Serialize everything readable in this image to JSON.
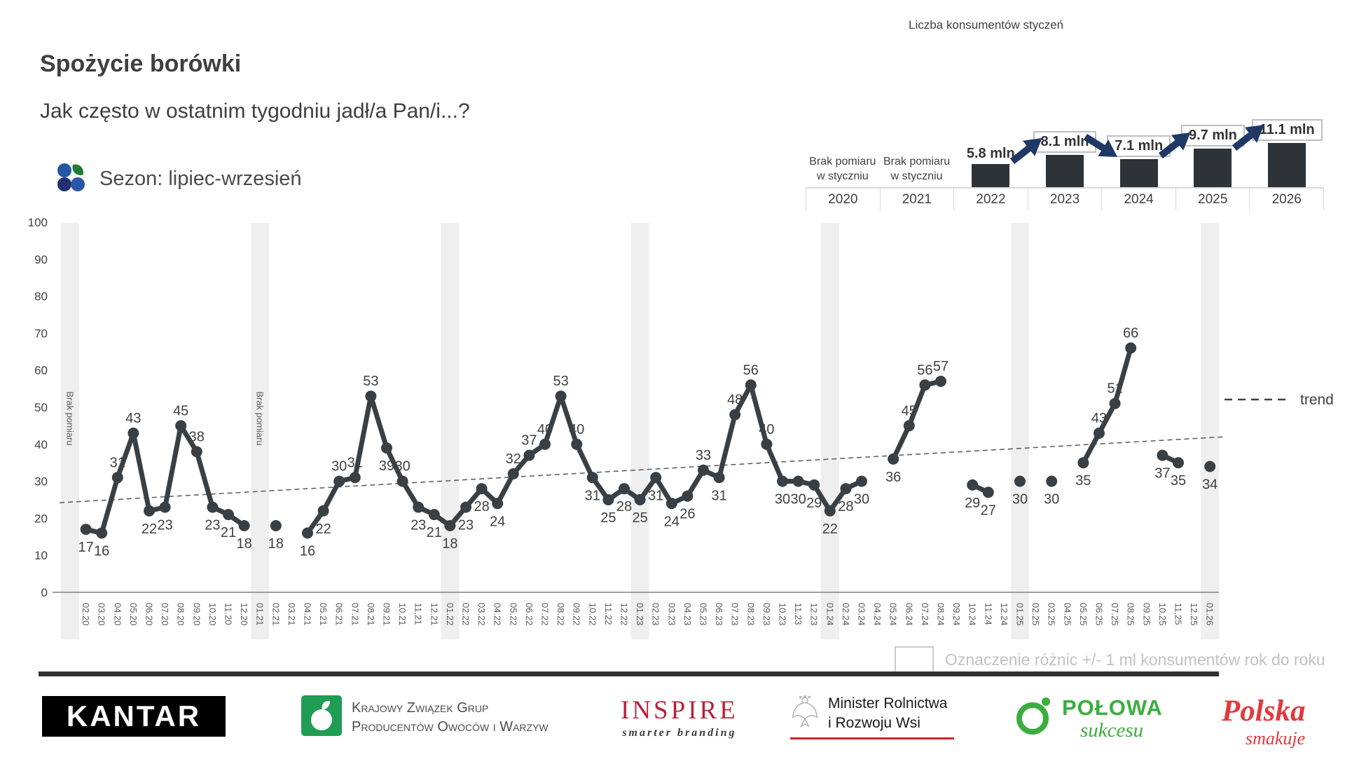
{
  "header": {
    "title": "Spożycie borówki",
    "subtitle": "Jak często w ostatnim tygodniu jadł/a Pan/i...?"
  },
  "season": {
    "label": "Sezon: lipiec-wrzesień"
  },
  "mini_chart": {
    "title": "Liczba konsumentów styczeń",
    "unit": "mln",
    "bar_color": "#2e3338",
    "arrow_color": "#1f3864",
    "columns": [
      {
        "year": "2020",
        "note": "Brak pomiaru w styczniu"
      },
      {
        "year": "2021",
        "note": "Brak pomiaru w styczniu"
      },
      {
        "year": "2022",
        "value": 5.8,
        "label": "5.8 mln",
        "boxed": false
      },
      {
        "year": "2023",
        "value": 8.1,
        "label": "8.1 mln",
        "boxed": true
      },
      {
        "year": "2024",
        "value": 7.1,
        "label": "7.1 mln",
        "boxed": true
      },
      {
        "year": "2025",
        "value": 9.7,
        "label": "9.7 mln",
        "boxed": true
      },
      {
        "year": "2026",
        "value": 11.1,
        "label": "11.1 mln",
        "boxed": true
      }
    ],
    "arrows": [
      {
        "from": 2,
        "to": 3,
        "dir": "up"
      },
      {
        "from": 3,
        "to": 4,
        "dir": "down"
      },
      {
        "from": 4,
        "to": 5,
        "dir": "up"
      },
      {
        "from": 5,
        "to": 6,
        "dir": "up"
      }
    ]
  },
  "chart_data": {
    "type": "line",
    "title": "Spożycie borówki",
    "ylabel": "",
    "xlabel": "",
    "ylim": [
      0,
      100
    ],
    "yticks": [
      0,
      10,
      20,
      30,
      40,
      50,
      60,
      70,
      80,
      90,
      100
    ],
    "grid": false,
    "series_color": "#394045",
    "band_color": "#efefef",
    "x": [
      "02.20",
      "03.20",
      "04.20",
      "05.20",
      "06.20",
      "07.20",
      "08.20",
      "09.20",
      "10.20",
      "11.20",
      "12.20",
      "01.21",
      "02.21",
      "03.21",
      "04.21",
      "05.21",
      "06.21",
      "07.21",
      "08.21",
      "09.21",
      "10.21",
      "11.21",
      "12.21",
      "01.22",
      "02.22",
      "03.22",
      "04.22",
      "05.22",
      "06.22",
      "07.22",
      "08.22",
      "09.22",
      "10.22",
      "11.22",
      "12.22",
      "01.23",
      "02.23",
      "03.23",
      "04.23",
      "05.23",
      "06.23",
      "07.23",
      "08.23",
      "09.23",
      "10.23",
      "11.23",
      "12.23",
      "01.24",
      "02.24",
      "03.24",
      "04.24",
      "05.24",
      "06.24",
      "07.24",
      "08.24",
      "09.24",
      "10.24",
      "11.24",
      "12.24",
      "01.25",
      "02.25",
      "03.25",
      "04.25",
      "05.25",
      "06.25",
      "07.25",
      "08.25",
      "09.25",
      "10.25",
      "11.25",
      "12.25",
      "01.26"
    ],
    "values": [
      17,
      16,
      31,
      43,
      22,
      23,
      45,
      38,
      23,
      21,
      18,
      null,
      18,
      null,
      16,
      22,
      30,
      31,
      53,
      39,
      30,
      23,
      21,
      18,
      23,
      28,
      24,
      32,
      37,
      40,
      53,
      40,
      31,
      25,
      28,
      25,
      31,
      24,
      26,
      33,
      31,
      48,
      56,
      40,
      30,
      30,
      29,
      22,
      28,
      30,
      null,
      36,
      45,
      56,
      57,
      null,
      29,
      27,
      null,
      30,
      null,
      30,
      null,
      35,
      43,
      51,
      66,
      null,
      37,
      35,
      null,
      34
    ],
    "label_side": [
      "b",
      "b",
      "a",
      "a",
      "b",
      "b",
      "a",
      "a",
      "b",
      "b",
      "b",
      null,
      "b",
      null,
      "b",
      "b",
      "a",
      "a",
      "a",
      "b",
      "a",
      "b",
      "b",
      "b",
      "b",
      "b",
      "b",
      "a",
      "a",
      "a",
      "a",
      "a",
      "b",
      "b",
      "b",
      "b",
      "b",
      "b",
      "b",
      "a",
      "b",
      "a",
      "a",
      "a",
      "b",
      "b",
      "b",
      "b",
      "b",
      "b",
      null,
      "b",
      "a",
      "a",
      "a",
      null,
      "b",
      "b",
      null,
      "b",
      null,
      "b",
      null,
      "b",
      "a",
      "a",
      "a",
      null,
      "b",
      "b",
      null,
      "b"
    ],
    "no_measurement_bands": [
      "01.20",
      "01.21",
      "01.22",
      "01.23",
      "01.24",
      "01.25",
      "01.26"
    ],
    "no_measurement_labels": [
      "01.20",
      "01.21"
    ],
    "no_measurement_text": "Brak pomiaru",
    "trend": {
      "from_value": 24.2,
      "to_value": 42
    },
    "trend_legend": "trend",
    "legend_position": "right"
  },
  "legend": {
    "diff_note": "Oznaczenie różnic +/- 1 ml konsumentów rok do roku"
  },
  "footer": {
    "kantar": "KANTAR",
    "kzg_line1": "Krajowy Związek Grup",
    "kzg_line2": "Producentów Owoców i Warzyw",
    "inspire": "INSPIRE",
    "inspire_tagline": "smarter branding",
    "ministry_line1": "Minister Rolnictwa",
    "ministry_line2": "i Rozwoju Wsi",
    "polowa_line1": "POŁOWA",
    "polowa_line2": "sukcesu",
    "polska_line1": "Polska",
    "polska_line2": "smakuje"
  }
}
